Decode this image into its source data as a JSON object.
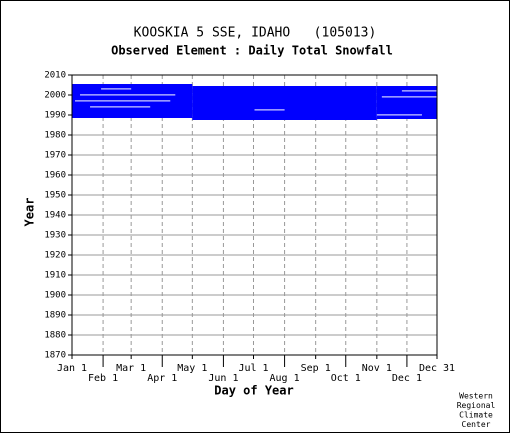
{
  "chart_data": {
    "type": "coverage",
    "title": "KOOSKIA 5 SSE, IDAHO   (105013)",
    "subtitle": "Observed Element : Daily Total Snowfall",
    "xlabel": "Day of Year",
    "ylabel": "Year",
    "credit": [
      "Western",
      "Regional",
      "Climate",
      "Center"
    ],
    "color": "#0000ff",
    "gap_color": "#ffffff",
    "xlim": [
      1,
      365
    ],
    "xticks": [
      {
        "value": 1,
        "label": "Jan 1"
      },
      {
        "value": 32,
        "label": "Feb 1"
      },
      {
        "value": 60,
        "label": "Mar 1"
      },
      {
        "value": 91,
        "label": "Apr 1"
      },
      {
        "value": 121,
        "label": "May 1"
      },
      {
        "value": 152,
        "label": "Jun 1"
      },
      {
        "value": 182,
        "label": "Jul 1"
      },
      {
        "value": 213,
        "label": "Aug 1"
      },
      {
        "value": 244,
        "label": "Sep 1"
      },
      {
        "value": 274,
        "label": "Oct 1"
      },
      {
        "value": 305,
        "label": "Nov 1"
      },
      {
        "value": 335,
        "label": "Dec 1"
      },
      {
        "value": 365,
        "label": "Dec 31"
      }
    ],
    "ylim": [
      1870,
      2010
    ],
    "yticks": [
      1870,
      1880,
      1890,
      1900,
      1910,
      1920,
      1930,
      1940,
      1950,
      1960,
      1970,
      1980,
      1990,
      2000,
      2010
    ],
    "grid": true,
    "coverage": [
      {
        "days": [
          1,
          121
        ],
        "years": [
          1988.5,
          2005.5
        ]
      },
      {
        "days": [
          121,
          305
        ],
        "years": [
          1987.5,
          2004.5
        ]
      },
      {
        "days": [
          305,
          365
        ],
        "years": [
          1988,
          2004.5
        ]
      }
    ],
    "gaps": [
      {
        "days": [
          9,
          104
        ],
        "years": [
          1999.8,
          2000.3
        ]
      },
      {
        "days": [
          4,
          99
        ],
        "years": [
          1996.8,
          1997.3
        ]
      },
      {
        "days": [
          19,
          79
        ],
        "years": [
          1993.8,
          1994.3
        ]
      },
      {
        "days": [
          30,
          60
        ],
        "years": [
          2002.8,
          2003.3
        ]
      },
      {
        "days": [
          183,
          213
        ],
        "years": [
          1992.3,
          1992.8
        ]
      },
      {
        "days": [
          305,
          350
        ],
        "years": [
          1989.8,
          1990.3
        ]
      },
      {
        "days": [
          310,
          365
        ],
        "years": [
          1998.8,
          1999.3
        ]
      },
      {
        "days": [
          330,
          365
        ],
        "years": [
          2001.8,
          2002.3
        ]
      }
    ]
  }
}
